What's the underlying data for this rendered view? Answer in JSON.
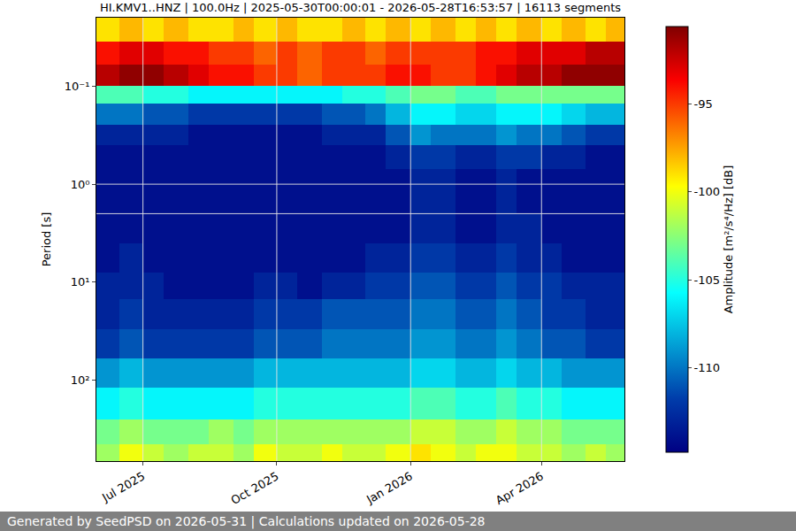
{
  "chart_data": {
    "type": "heatmap",
    "title": "HI.KMV1..HNZ | 100.0Hz | 2025-05-30T00:00:01 - 2026-05-28T16:53:57 | 16113 segments",
    "ylabel": "Period [s]",
    "colorbar_label": "Amplitude [m²/s⁴/Hz] [dB]",
    "footer": "Generated by SeedPSD on 2026-05-31 | Calculations updated on 2026-05-28",
    "color": "Jet",
    "log": "y",
    "grid": true,
    "x": [
      "2025-05-30",
      "2025-06-15",
      "2025-07-01",
      "2025-07-15",
      "2025-08-01",
      "2025-08-15",
      "2025-09-01",
      "2025-09-15",
      "2025-10-01",
      "2025-10-15",
      "2025-11-01",
      "2025-11-15",
      "2025-12-01",
      "2025-12-15",
      "2026-01-01",
      "2026-01-15",
      "2026-02-01",
      "2026-02-15",
      "2026-03-01",
      "2026-03-15",
      "2026-04-01",
      "2026-04-15",
      "2026-05-01",
      "2026-05-15",
      "2026-05-28"
    ],
    "y": [
      0.02,
      0.035,
      0.06,
      0.1,
      0.15,
      0.25,
      0.4,
      0.7,
      1.2,
      2,
      4,
      8,
      15,
      30,
      60,
      120,
      250,
      450,
      670
    ],
    "z": [
      [
        -99,
        -98,
        -99,
        -98,
        -99,
        -99,
        -98,
        -99,
        -98,
        -99,
        -99,
        -98,
        -99,
        -98,
        -99,
        -98,
        -99,
        -98,
        -99,
        -98,
        -99,
        -98,
        -99,
        -98
      ],
      [
        -94,
        -93,
        -93,
        -94,
        -94,
        -95,
        -95,
        -96,
        -95,
        -96,
        -95,
        -95,
        -96,
        -95,
        -95,
        -95,
        -95,
        -94,
        -94,
        -93,
        -93,
        -93,
        -92,
        -92
      ],
      [
        -92,
        -91,
        -91,
        -92,
        -93,
        -94,
        -94,
        -95,
        -95,
        -96,
        -95,
        -95,
        -95,
        -94,
        -94,
        -95,
        -95,
        -94,
        -93,
        -92,
        -92,
        -91,
        -91,
        -91
      ],
      [
        -104,
        -104,
        -105,
        -105,
        -106,
        -106,
        -106,
        -106,
        -106,
        -106,
        -106,
        -105,
        -105,
        -104,
        -103,
        -103,
        -104,
        -104,
        -103,
        -103,
        -103,
        -103,
        -103,
        -103
      ],
      [
        -110,
        -110,
        -111,
        -111,
        -112,
        -112,
        -112,
        -112,
        -112,
        -112,
        -111,
        -111,
        -110,
        -108,
        -106,
        -106,
        -107,
        -107,
        -106,
        -106,
        -106,
        -107,
        -108,
        -108
      ],
      [
        -113,
        -113,
        -113,
        -113,
        -114,
        -114,
        -114,
        -114,
        -114,
        -114,
        -113,
        -113,
        -113,
        -111,
        -109,
        -110,
        -110,
        -110,
        -109,
        -110,
        -110,
        -111,
        -112,
        -112
      ],
      [
        -114,
        -114,
        -114,
        -114,
        -114,
        -114,
        -114,
        -114,
        -114,
        -114,
        -114,
        -114,
        -114,
        -113,
        -112,
        -112,
        -113,
        -113,
        -112,
        -112,
        -113,
        -113,
        -114,
        -114
      ],
      [
        -114,
        -114,
        -114,
        -114,
        -114,
        -114,
        -114,
        -114,
        -114,
        -114,
        -114,
        -114,
        -114,
        -114,
        -113,
        -113,
        -114,
        -114,
        -113,
        -114,
        -114,
        -114,
        -114,
        -114
      ],
      [
        -114,
        -114,
        -114,
        -114,
        -114,
        -114,
        -114,
        -114,
        -114,
        -114,
        -114,
        -114,
        -114,
        -114,
        -113,
        -113,
        -114,
        -114,
        -113,
        -114,
        -114,
        -114,
        -114,
        -114
      ],
      [
        -114,
        -114,
        -114,
        -114,
        -114,
        -114,
        -114,
        -114,
        -114,
        -114,
        -114,
        -114,
        -114,
        -114,
        -113,
        -113,
        -114,
        -114,
        -113,
        -113,
        -114,
        -114,
        -114,
        -114
      ],
      [
        -114,
        -113,
        -114,
        -114,
        -114,
        -114,
        -114,
        -114,
        -114,
        -114,
        -114,
        -114,
        -113,
        -113,
        -112,
        -112,
        -113,
        -113,
        -112,
        -113,
        -113,
        -114,
        -114,
        -114
      ],
      [
        -113,
        -113,
        -113,
        -114,
        -114,
        -114,
        -114,
        -113,
        -113,
        -114,
        -113,
        -113,
        -112,
        -112,
        -111,
        -111,
        -112,
        -112,
        -111,
        -112,
        -112,
        -113,
        -113,
        -113
      ],
      [
        -113,
        -112,
        -113,
        -113,
        -113,
        -113,
        -113,
        -112,
        -112,
        -112,
        -111,
        -111,
        -111,
        -111,
        -110,
        -110,
        -111,
        -111,
        -110,
        -111,
        -112,
        -112,
        -113,
        -113
      ],
      [
        -112,
        -111,
        -112,
        -112,
        -112,
        -112,
        -112,
        -111,
        -111,
        -111,
        -110,
        -110,
        -110,
        -110,
        -109,
        -109,
        -110,
        -110,
        -109,
        -110,
        -111,
        -111,
        -112,
        -112
      ],
      [
        -109,
        -108,
        -109,
        -109,
        -109,
        -109,
        -109,
        -108,
        -108,
        -108,
        -108,
        -108,
        -108,
        -108,
        -107,
        -107,
        -108,
        -108,
        -107,
        -108,
        -108,
        -109,
        -109,
        -109
      ],
      [
        -106,
        -105,
        -106,
        -106,
        -106,
        -106,
        -106,
        -105,
        -105,
        -105,
        -105,
        -105,
        -105,
        -105,
        -104,
        -104,
        -105,
        -105,
        -104,
        -105,
        -105,
        -106,
        -106,
        -106
      ],
      [
        -103,
        -102,
        -103,
        -103,
        -103,
        -102,
        -103,
        -102,
        -102,
        -102,
        -102,
        -102,
        -102,
        -102,
        -101,
        -101,
        -102,
        -102,
        -101,
        -102,
        -102,
        -103,
        -103,
        -103
      ],
      [
        -102,
        -100,
        -101,
        -102,
        -101,
        -101,
        -102,
        -100,
        -101,
        -101,
        -100,
        -101,
        -101,
        -100,
        -99,
        -100,
        -101,
        -100,
        -100,
        -101,
        -101,
        -102,
        -101,
        -102
      ]
    ],
    "xlim": [
      "2025-05-30",
      "2026-05-28"
    ],
    "xticks": [
      {
        "value": "2025-07-01",
        "label": "Jul 2025"
      },
      {
        "value": "2025-10-01",
        "label": "Oct 2025"
      },
      {
        "value": "2026-01-01",
        "label": "Jan 2026"
      },
      {
        "value": "2026-04-01",
        "label": "Apr 2026"
      }
    ],
    "ylim": [
      0.02,
      670
    ],
    "yticks": [
      {
        "value": 0.1,
        "label": "10⁻¹"
      },
      {
        "value": 1,
        "label": "10⁰"
      },
      {
        "value": 10,
        "label": "10¹"
      },
      {
        "value": 100,
        "label": "10²"
      }
    ],
    "zlim": [
      -114.8,
      -90.6
    ],
    "zticks": [
      -95,
      -100,
      -105,
      -110
    ]
  }
}
